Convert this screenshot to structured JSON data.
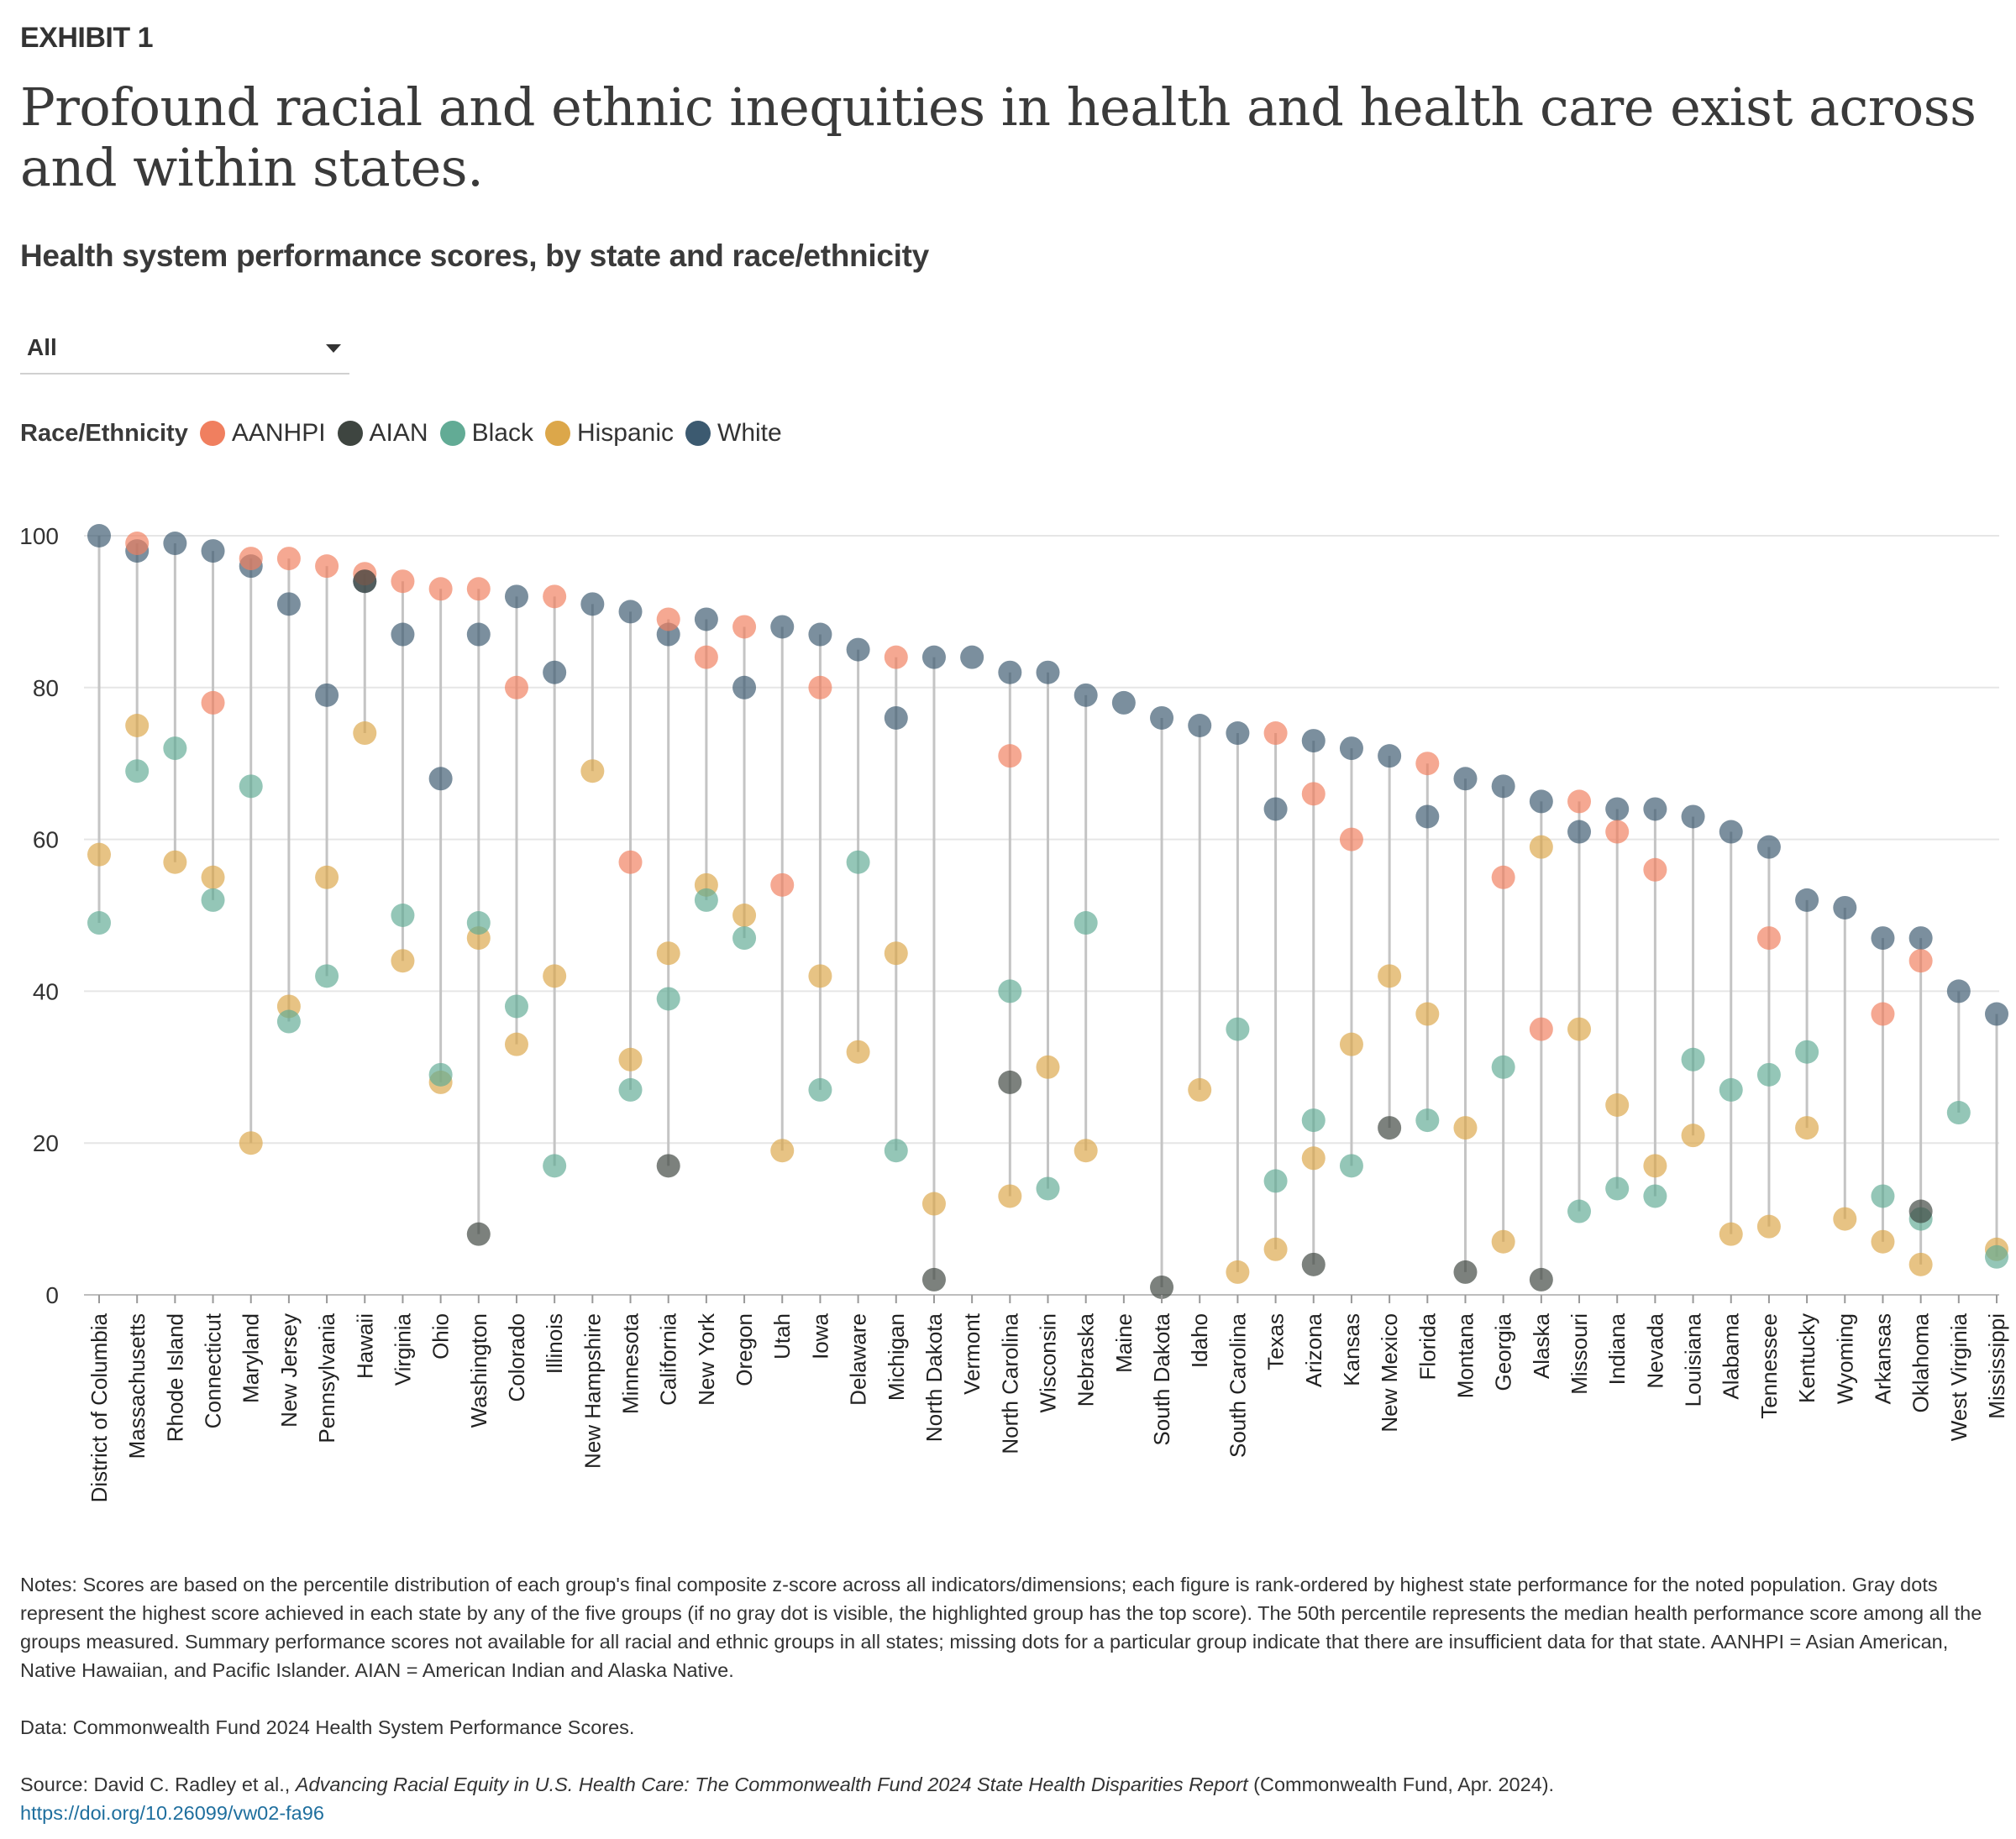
{
  "header": {
    "exhibit": "EXHIBIT 1",
    "title": "Profound racial and ethnic inequities in health and health care exist across and within states.",
    "subtitle": "Health system performance scores, by state and race/ethnicity"
  },
  "filter": {
    "selected": "All"
  },
  "legend": {
    "title": "Race/Ethnicity",
    "items": [
      {
        "key": "AANHPI",
        "label": "AANHPI",
        "color": "#f07f5f"
      },
      {
        "key": "AIAN",
        "label": "AIAN",
        "color": "#3e4540"
      },
      {
        "key": "Black",
        "label": "Black",
        "color": "#62ab95"
      },
      {
        "key": "Hispanic",
        "label": "Hispanic",
        "color": "#dca74a"
      },
      {
        "key": "White",
        "label": "White",
        "color": "#3c5a70"
      }
    ]
  },
  "chart_data": {
    "type": "scatter",
    "title": "Health system performance scores, by state and race/ethnicity",
    "xlabel": "",
    "ylabel": "",
    "ylim": [
      0,
      100
    ],
    "yticks": [
      0,
      20,
      40,
      60,
      80,
      100
    ],
    "grid": true,
    "categories": [
      "District of Columbia",
      "Massachusetts",
      "Rhode Island",
      "Connecticut",
      "Maryland",
      "New Jersey",
      "Pennsylvania",
      "Hawaii",
      "Virginia",
      "Ohio",
      "Washington",
      "Colorado",
      "Illinois",
      "New Hampshire",
      "Minnesota",
      "California",
      "New York",
      "Oregon",
      "Utah",
      "Iowa",
      "Delaware",
      "Michigan",
      "North Dakota",
      "Vermont",
      "North Carolina",
      "Wisconsin",
      "Nebraska",
      "Maine",
      "South Dakota",
      "Idaho",
      "South Carolina",
      "Texas",
      "Arizona",
      "Kansas",
      "New Mexico",
      "Florida",
      "Montana",
      "Georgia",
      "Alaska",
      "Missouri",
      "Indiana",
      "Nevada",
      "Louisiana",
      "Alabama",
      "Tennessee",
      "Kentucky",
      "Wyoming",
      "Arkansas",
      "Oklahoma",
      "West Virginia",
      "Mississippi"
    ],
    "series": [
      {
        "name": "AANHPI",
        "values": [
          null,
          99,
          null,
          78,
          97,
          97,
          96,
          95,
          94,
          93,
          93,
          80,
          92,
          null,
          57,
          89,
          84,
          88,
          54,
          80,
          null,
          84,
          null,
          null,
          71,
          null,
          null,
          null,
          null,
          null,
          null,
          74,
          66,
          60,
          null,
          70,
          null,
          55,
          35,
          65,
          61,
          56,
          null,
          null,
          47,
          null,
          null,
          37,
          44,
          null,
          null
        ]
      },
      {
        "name": "AIAN",
        "values": [
          null,
          null,
          null,
          null,
          null,
          null,
          null,
          94,
          null,
          null,
          8,
          null,
          null,
          null,
          null,
          17,
          null,
          null,
          null,
          null,
          null,
          null,
          2,
          null,
          28,
          null,
          null,
          null,
          1,
          null,
          null,
          null,
          4,
          null,
          22,
          null,
          3,
          null,
          2,
          null,
          null,
          null,
          null,
          null,
          null,
          null,
          null,
          null,
          11,
          null,
          null
        ]
      },
      {
        "name": "Black",
        "values": [
          49,
          69,
          72,
          52,
          67,
          36,
          42,
          null,
          50,
          29,
          49,
          38,
          17,
          null,
          27,
          39,
          52,
          47,
          null,
          27,
          57,
          19,
          null,
          null,
          40,
          14,
          49,
          null,
          null,
          null,
          35,
          15,
          23,
          17,
          null,
          23,
          null,
          30,
          null,
          11,
          14,
          13,
          31,
          27,
          29,
          32,
          null,
          13,
          10,
          24,
          5
        ]
      },
      {
        "name": "Hispanic",
        "values": [
          58,
          75,
          57,
          55,
          20,
          38,
          55,
          74,
          44,
          28,
          47,
          33,
          42,
          69,
          31,
          45,
          54,
          50,
          19,
          42,
          32,
          45,
          12,
          null,
          13,
          30,
          19,
          null,
          null,
          27,
          3,
          6,
          18,
          33,
          42,
          37,
          22,
          7,
          59,
          35,
          25,
          17,
          21,
          8,
          9,
          22,
          10,
          7,
          4,
          null,
          6
        ]
      },
      {
        "name": "White",
        "values": [
          100,
          98,
          99,
          98,
          96,
          91,
          79,
          94,
          87,
          68,
          87,
          92,
          82,
          91,
          90,
          87,
          89,
          80,
          88,
          87,
          85,
          76,
          84,
          84,
          82,
          82,
          79,
          78,
          76,
          75,
          74,
          64,
          73,
          72,
          71,
          63,
          68,
          67,
          65,
          61,
          64,
          64,
          63,
          61,
          59,
          52,
          51,
          47,
          47,
          40,
          37
        ]
      }
    ]
  },
  "notes": {
    "notes_text": "Notes: Scores are based on the percentile distribution of each group's final composite z-score across all indicators/dimensions; each figure is rank-ordered by highest state performance for the noted population. Gray dots represent the highest score achieved in each state by any of the five groups (if no gray dot is visible, the highlighted group has the top score). The 50th percentile represents the median health performance score among all the groups measured. Summary performance scores not available for all racial and ethnic groups in all states; missing dots for a particular group indicate that there are insufficient data for that state. AANHPI = Asian American, Native Hawaiian, and Pacific Islander. AIAN = American Indian and Alaska Native.",
    "data_text": "Data: Commonwealth Fund 2024 Health System Performance Scores.",
    "source_prefix": "Source: David C. Radley et al., ",
    "source_title": "Advancing Racial Equity in U.S. Health Care: The Commonwealth Fund 2024 State Health Disparities Report",
    "source_suffix": " (Commonwealth Fund, Apr. 2024).",
    "source_link": "https://doi.org/10.26099/vw02-fa96"
  }
}
